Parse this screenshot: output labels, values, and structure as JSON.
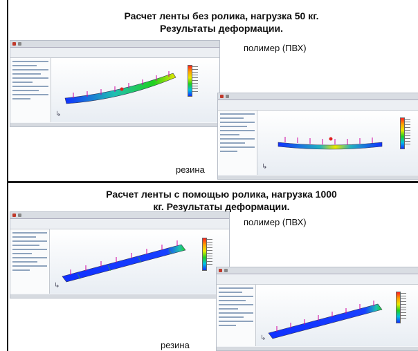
{
  "section1": {
    "title_line1": "Расчет ленты без ролика, нагрузка 50 кг.",
    "title_line2": "Результаты деформации.",
    "label_polymer": "полимер (ПВХ)",
    "label_rubber": "резина"
  },
  "section2": {
    "title_line1": "Расчет ленты с помощью ролика, нагрузка 1000",
    "title_line2": "кг. Результаты деформации.",
    "label_polymer": "полимер (ПВХ)",
    "label_rubber": "резина"
  },
  "colors": {
    "deform_high": "#ff2020",
    "deform_mid": "#20d020",
    "deform_low": "#1030ff",
    "load_arrows": "#d000a0"
  },
  "icons": [
    "axis-triad-icon",
    "color-legend",
    "load-arrow-icon"
  ]
}
